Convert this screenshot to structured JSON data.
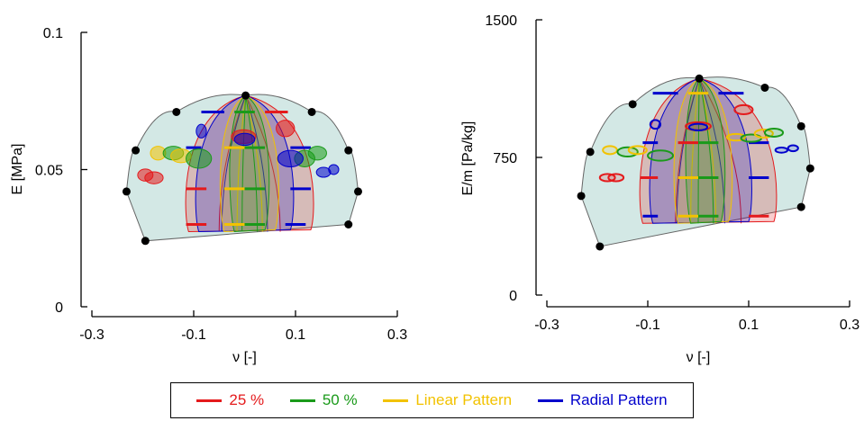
{
  "chart_data": [
    {
      "type": "scatter",
      "xlabel": "ν [-]",
      "ylabel": "E [MPa]",
      "xlim": [
        -0.3,
        0.3
      ],
      "ylim": [
        0,
        0.1
      ],
      "xticks": [
        "-0.3",
        "-0.1",
        "0.1",
        "0.3"
      ],
      "yticks": [
        "0",
        "0.05",
        "0.1"
      ],
      "boundary_points": [
        {
          "x": -0.195,
          "y": 0.024
        },
        {
          "x": -0.232,
          "y": 0.042
        },
        {
          "x": -0.214,
          "y": 0.057
        },
        {
          "x": -0.134,
          "y": 0.071
        },
        {
          "x": 0.002,
          "y": 0.077
        },
        {
          "x": 0.132,
          "y": 0.071
        },
        {
          "x": 0.204,
          "y": 0.057
        },
        {
          "x": 0.223,
          "y": 0.042
        },
        {
          "x": 0.204,
          "y": 0.03
        }
      ],
      "bands": [
        {
          "series": "25 %",
          "color": "#e41a1c",
          "x_top": [
            -0.11,
            0.13
          ],
          "x_bottom": [
            -0.11,
            0.13
          ]
        },
        {
          "series": "Radial Pattern",
          "color": "#0000cc",
          "x_top": [
            -0.09,
            0.09
          ],
          "x_bottom": [
            -0.09,
            0.09
          ]
        },
        {
          "series": "Linear Pattern",
          "color": "#f2c200",
          "x_top": [
            -0.04,
            0.06
          ],
          "x_bottom": [
            -0.04,
            0.06
          ]
        },
        {
          "series": "50 %",
          "color": "#1a9a1a",
          "x_top": [
            -0.02,
            0.04
          ],
          "x_bottom": [
            -0.02,
            0.04
          ]
        }
      ],
      "levels": [
        {
          "y": 0.071,
          "segments": [
            {
              "x": [
                -0.085,
                -0.04
              ],
              "c": "#0000cc"
            },
            {
              "x": [
                -0.02,
                0.02
              ],
              "c": "#1a9a1a"
            },
            {
              "x": [
                0.04,
                0.085
              ],
              "c": "#e41a1c"
            }
          ]
        },
        {
          "y": 0.058,
          "segments": [
            {
              "x": [
                -0.115,
                -0.085
              ],
              "c": "#0000cc"
            },
            {
              "x": [
                -0.04,
                0.0
              ],
              "c": "#f2c200"
            },
            {
              "x": [
                0.0,
                0.04
              ],
              "c": "#1a9a1a"
            },
            {
              "x": [
                0.09,
                0.13
              ],
              "c": "#0000cc"
            }
          ]
        },
        {
          "y": 0.043,
          "segments": [
            {
              "x": [
                -0.115,
                -0.075
              ],
              "c": "#e41a1c"
            },
            {
              "x": [
                -0.04,
                0.0
              ],
              "c": "#f2c200"
            },
            {
              "x": [
                0.0,
                0.04
              ],
              "c": "#1a9a1a"
            },
            {
              "x": [
                0.09,
                0.13
              ],
              "c": "#0000cc"
            }
          ]
        },
        {
          "y": 0.03,
          "segments": [
            {
              "x": [
                -0.115,
                -0.075
              ],
              "c": "#e41a1c"
            },
            {
              "x": [
                -0.04,
                0.0
              ],
              "c": "#f2c200"
            },
            {
              "x": [
                0.0,
                0.04
              ],
              "c": "#1a9a1a"
            },
            {
              "x": [
                0.08,
                0.12
              ],
              "c": "#0000cc"
            }
          ]
        }
      ],
      "ellipses": [
        {
          "x": -0.195,
          "y": 0.048,
          "rx": 0.015,
          "ry": 0.0022,
          "c": "#e41a1c"
        },
        {
          "x": -0.178,
          "y": 0.047,
          "rx": 0.018,
          "ry": 0.0022,
          "c": "#e41a1c"
        },
        {
          "x": -0.17,
          "y": 0.056,
          "rx": 0.015,
          "ry": 0.0025,
          "c": "#f2c200"
        },
        {
          "x": -0.14,
          "y": 0.056,
          "rx": 0.02,
          "ry": 0.0025,
          "c": "#1a9a1a"
        },
        {
          "x": -0.125,
          "y": 0.055,
          "rx": 0.02,
          "ry": 0.0025,
          "c": "#f2c200"
        },
        {
          "x": -0.09,
          "y": 0.054,
          "rx": 0.025,
          "ry": 0.0035,
          "c": "#1a9a1a"
        },
        {
          "x": -0.085,
          "y": 0.064,
          "rx": 0.01,
          "ry": 0.0025,
          "c": "#0000cc"
        },
        {
          "x": -0.002,
          "y": 0.062,
          "rx": 0.024,
          "ry": 0.0025,
          "c": "#e41a1c"
        },
        {
          "x": 0.0,
          "y": 0.061,
          "rx": 0.02,
          "ry": 0.0022,
          "c": "#0000cc"
        },
        {
          "x": 0.08,
          "y": 0.065,
          "rx": 0.018,
          "ry": 0.003,
          "c": "#e41a1c"
        },
        {
          "x": 0.118,
          "y": 0.054,
          "rx": 0.02,
          "ry": 0.003,
          "c": "#1a9a1a"
        },
        {
          "x": 0.143,
          "y": 0.056,
          "rx": 0.018,
          "ry": 0.0025,
          "c": "#1a9a1a"
        },
        {
          "x": 0.09,
          "y": 0.054,
          "rx": 0.025,
          "ry": 0.003,
          "c": "#0000cc"
        },
        {
          "x": 0.155,
          "y": 0.049,
          "rx": 0.014,
          "ry": 0.0018,
          "c": "#0000cc"
        },
        {
          "x": 0.175,
          "y": 0.05,
          "rx": 0.01,
          "ry": 0.0018,
          "c": "#0000cc"
        }
      ]
    },
    {
      "type": "scatter",
      "xlabel": "ν [-]",
      "ylabel": "E/m [Pa/kg]",
      "xlim": [
        -0.3,
        0.3
      ],
      "ylim": [
        0,
        1500
      ],
      "xticks": [
        "-0.3",
        "-0.1",
        "0.1",
        "0.3"
      ],
      "yticks": [
        "0",
        "750",
        "1500"
      ],
      "boundary_points": [
        {
          "x": -0.195,
          "y": 265
        },
        {
          "x": -0.232,
          "y": 540
        },
        {
          "x": -0.214,
          "y": 780
        },
        {
          "x": -0.13,
          "y": 1040
        },
        {
          "x": 0.002,
          "y": 1180
        },
        {
          "x": 0.132,
          "y": 1130
        },
        {
          "x": 0.204,
          "y": 920
        },
        {
          "x": 0.222,
          "y": 690
        },
        {
          "x": 0.204,
          "y": 480
        }
      ],
      "bands": [
        {
          "series": "25 %",
          "color": "#e41a1c",
          "x_top": [
            -0.11,
            0.15
          ],
          "x_bottom": [
            -0.11,
            0.15
          ]
        },
        {
          "series": "Radial Pattern",
          "color": "#0000cc",
          "x_top": [
            -0.09,
            0.1
          ],
          "x_bottom": [
            -0.09,
            0.1
          ]
        },
        {
          "series": "Linear Pattern",
          "color": "#f2c200",
          "x_top": [
            -0.04,
            0.06
          ],
          "x_bottom": [
            -0.04,
            0.06
          ]
        },
        {
          "series": "50 %",
          "color": "#1a9a1a",
          "x_top": [
            -0.015,
            0.045
          ],
          "x_bottom": [
            -0.015,
            0.045
          ]
        }
      ],
      "levels": [
        {
          "y": 1100,
          "segments": [
            {
              "x": [
                -0.09,
                -0.04
              ],
              "c": "#0000cc"
            },
            {
              "x": [
                -0.02,
                0.02
              ],
              "c": "#f2c200"
            },
            {
              "x": [
                0.04,
                0.09
              ],
              "c": "#0000cc"
            }
          ]
        },
        {
          "y": 830,
          "segments": [
            {
              "x": [
                -0.11,
                -0.08
              ],
              "c": "#0000cc"
            },
            {
              "x": [
                -0.04,
                0.0
              ],
              "c": "#e41a1c"
            },
            {
              "x": [
                0.0,
                0.04
              ],
              "c": "#1a9a1a"
            },
            {
              "x": [
                0.1,
                0.14
              ],
              "c": "#0000cc"
            }
          ]
        },
        {
          "y": 640,
          "segments": [
            {
              "x": [
                -0.115,
                -0.08
              ],
              "c": "#e41a1c"
            },
            {
              "x": [
                -0.04,
                0.0
              ],
              "c": "#f2c200"
            },
            {
              "x": [
                0.0,
                0.04
              ],
              "c": "#1a9a1a"
            },
            {
              "x": [
                0.1,
                0.14
              ],
              "c": "#0000cc"
            }
          ]
        },
        {
          "y": 430,
          "segments": [
            {
              "x": [
                -0.11,
                -0.08
              ],
              "c": "#0000cc"
            },
            {
              "x": [
                -0.04,
                0.0
              ],
              "c": "#f2c200"
            },
            {
              "x": [
                0.0,
                0.04
              ],
              "c": "#1a9a1a"
            },
            {
              "x": [
                0.1,
                0.14
              ],
              "c": "#e41a1c"
            }
          ]
        }
      ],
      "ellipses": [
        {
          "x": -0.18,
          "y": 640,
          "rx": 0.015,
          "ry": 20,
          "c": "#e41a1c"
        },
        {
          "x": -0.163,
          "y": 640,
          "rx": 0.015,
          "ry": 20,
          "c": "#e41a1c"
        },
        {
          "x": -0.175,
          "y": 790,
          "rx": 0.014,
          "ry": 22,
          "c": "#f2c200"
        },
        {
          "x": -0.14,
          "y": 780,
          "rx": 0.02,
          "ry": 25,
          "c": "#1a9a1a"
        },
        {
          "x": -0.12,
          "y": 790,
          "rx": 0.018,
          "ry": 22,
          "c": "#f2c200"
        },
        {
          "x": -0.075,
          "y": 760,
          "rx": 0.025,
          "ry": 28,
          "c": "#1a9a1a"
        },
        {
          "x": -0.085,
          "y": 930,
          "rx": 0.01,
          "ry": 24,
          "c": "#0000cc"
        },
        {
          "x": 0.0,
          "y": 920,
          "rx": 0.025,
          "ry": 22,
          "c": "#e41a1c"
        },
        {
          "x": 0.0,
          "y": 915,
          "rx": 0.018,
          "ry": 18,
          "c": "#0000cc"
        },
        {
          "x": 0.09,
          "y": 1010,
          "rx": 0.018,
          "ry": 25,
          "c": "#e41a1c"
        },
        {
          "x": 0.075,
          "y": 860,
          "rx": 0.018,
          "ry": 18,
          "c": "#f2c200"
        },
        {
          "x": 0.105,
          "y": 855,
          "rx": 0.02,
          "ry": 20,
          "c": "#1a9a1a"
        },
        {
          "x": 0.13,
          "y": 880,
          "rx": 0.018,
          "ry": 22,
          "c": "#f2c200"
        },
        {
          "x": 0.15,
          "y": 885,
          "rx": 0.018,
          "ry": 22,
          "c": "#1a9a1a"
        },
        {
          "x": 0.165,
          "y": 790,
          "rx": 0.012,
          "ry": 14,
          "c": "#0000cc"
        },
        {
          "x": 0.188,
          "y": 800,
          "rx": 0.01,
          "ry": 16,
          "c": "#0000cc"
        }
      ]
    }
  ],
  "legend": [
    {
      "label": "25 %",
      "color": "#e41a1c"
    },
    {
      "label": "50 %",
      "color": "#1a9a1a"
    },
    {
      "label": "Linear Pattern",
      "color": "#f2c200"
    },
    {
      "label": "Radial Pattern",
      "color": "#0000cc"
    }
  ],
  "colors": {
    "envelope_fill": "#cfe6e3",
    "envelope_stroke": "#555555",
    "point": "#000000"
  }
}
